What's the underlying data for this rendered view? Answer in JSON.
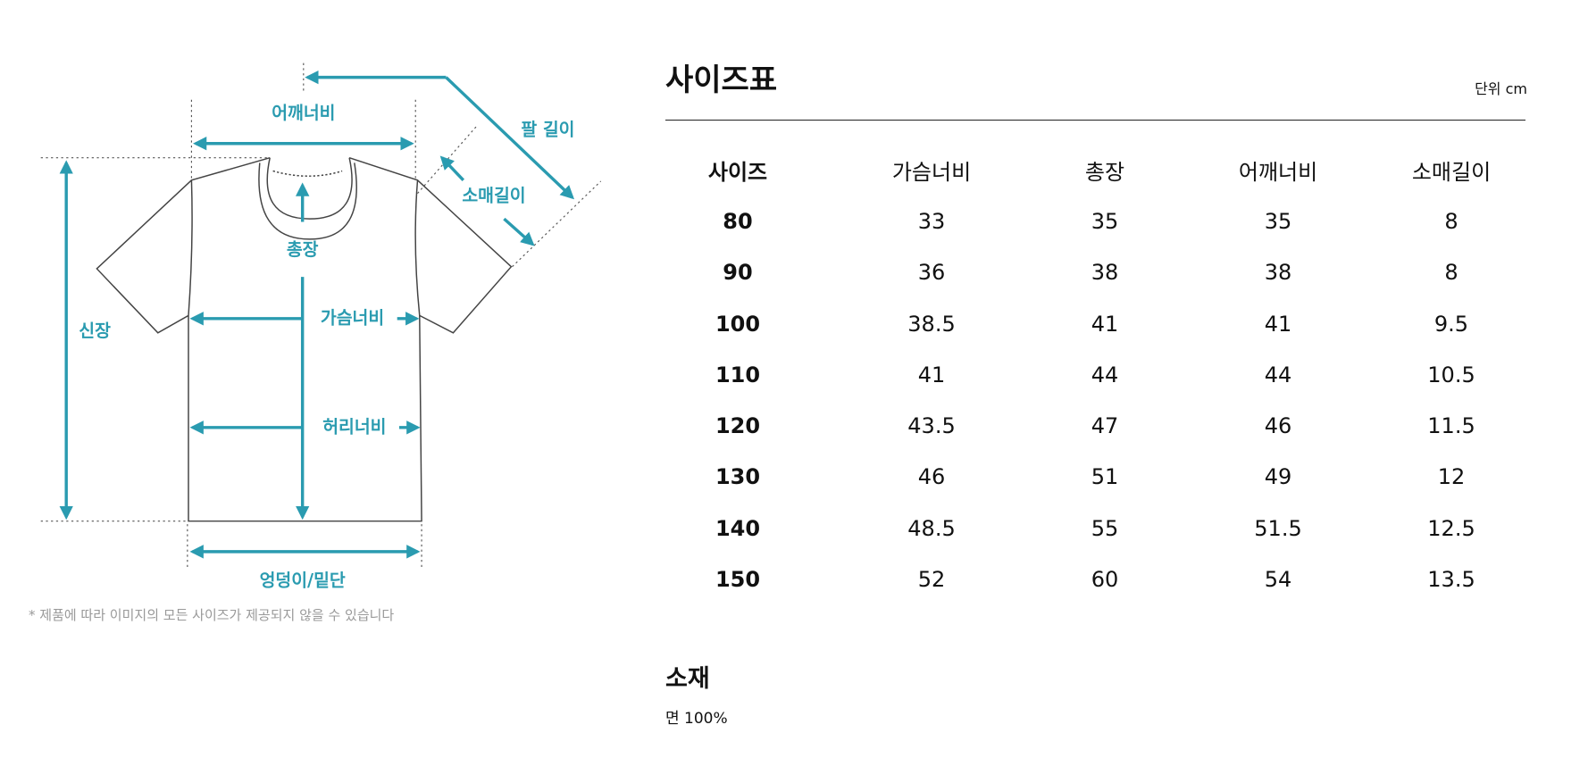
{
  "diagram": {
    "accent_color": "#2a9bb0",
    "labels": {
      "shoulder": "어깨너비",
      "arm_length": "팔 길이",
      "sleeve_length": "소매길이",
      "total_length": "총장",
      "height": "신장",
      "chest": "가슴너비",
      "waist": "허리너비",
      "hem": "엉덩이/밑단"
    },
    "note": "* 제품에 따라 이미지의 모든 사이즈가 제공되지 않을 수 있습니다"
  },
  "size_chart": {
    "title": "사이즈표",
    "unit": "단위 cm",
    "headers": [
      "사이즈",
      "가슴너비",
      "총장",
      "어깨너비",
      "소매길이"
    ],
    "rows": [
      [
        "80",
        "33",
        "35",
        "35",
        "8"
      ],
      [
        "90",
        "36",
        "38",
        "38",
        "8"
      ],
      [
        "100",
        "38.5",
        "41",
        "41",
        "9.5"
      ],
      [
        "110",
        "41",
        "44",
        "44",
        "10.5"
      ],
      [
        "120",
        "43.5",
        "47",
        "46",
        "11.5"
      ],
      [
        "130",
        "46",
        "51",
        "49",
        "12"
      ],
      [
        "140",
        "48.5",
        "55",
        "51.5",
        "12.5"
      ],
      [
        "150",
        "52",
        "60",
        "54",
        "13.5"
      ]
    ]
  },
  "material": {
    "title": "소재",
    "value": "면 100%"
  }
}
